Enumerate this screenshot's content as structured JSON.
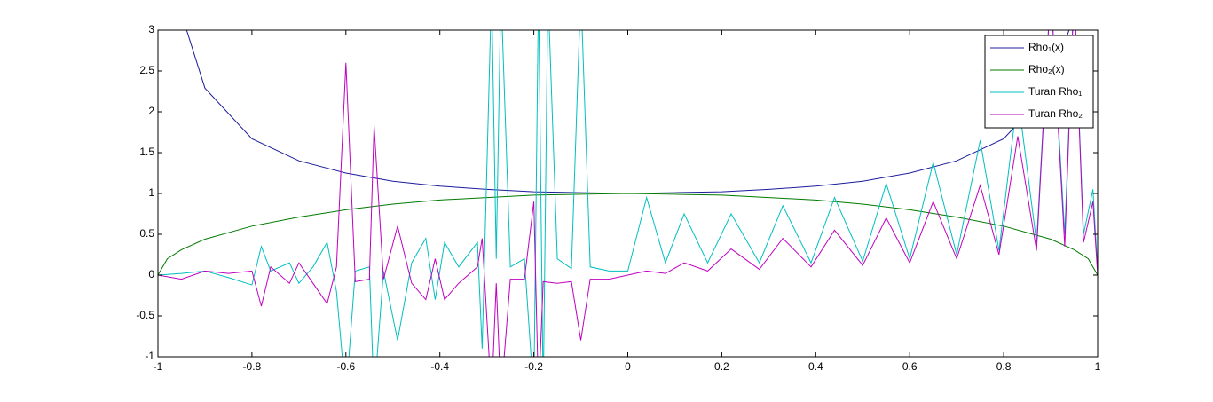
{
  "chart_data": {
    "type": "line",
    "xlim": [
      -1,
      1
    ],
    "xticks": [
      -1,
      -0.8,
      -0.6,
      -0.4,
      -0.2,
      0,
      0.2,
      0.4,
      0.6,
      0.8,
      1
    ],
    "ylim": [
      -1,
      3
    ],
    "yticks": [
      -1,
      -0.5,
      0,
      0.5,
      1,
      1.5,
      2,
      2.5,
      3
    ],
    "grid": false,
    "legend": "top-right",
    "series": [
      {
        "name": "Rho₁(x)",
        "color": "#1c1c9c",
        "x": [
          -0.98,
          -0.95,
          -0.9,
          -0.8,
          -0.7,
          -0.6,
          -0.5,
          -0.4,
          -0.3,
          -0.2,
          -0.1,
          0,
          0.1,
          0.2,
          0.3,
          0.4,
          0.5,
          0.6,
          0.7,
          0.8,
          0.9,
          0.95,
          0.98
        ],
        "values": [
          5.03,
          3.2,
          2.29,
          1.67,
          1.4,
          1.25,
          1.15,
          1.09,
          1.05,
          1.02,
          1.01,
          1,
          1.01,
          1.02,
          1.05,
          1.09,
          1.15,
          1.25,
          1.4,
          1.67,
          2.29,
          3.2,
          5.03
        ]
      },
      {
        "name": "Rho₂(x)",
        "color": "#007a00",
        "x": [
          -1,
          -0.98,
          -0.95,
          -0.9,
          -0.8,
          -0.7,
          -0.6,
          -0.5,
          -0.4,
          -0.3,
          -0.2,
          -0.1,
          0,
          0.1,
          0.2,
          0.3,
          0.4,
          0.5,
          0.6,
          0.7,
          0.8,
          0.9,
          0.95,
          0.98,
          1
        ],
        "values": [
          0,
          0.2,
          0.31,
          0.44,
          0.6,
          0.71,
          0.8,
          0.87,
          0.92,
          0.95,
          0.98,
          0.99,
          1,
          0.99,
          0.98,
          0.95,
          0.92,
          0.87,
          0.8,
          0.71,
          0.6,
          0.44,
          0.31,
          0.2,
          0
        ]
      },
      {
        "name": "Turan Rho₁",
        "color": "#00bfbf",
        "x": [
          -1,
          -0.95,
          -0.9,
          -0.85,
          -0.8,
          -0.78,
          -0.76,
          -0.72,
          -0.7,
          -0.67,
          -0.64,
          -0.62,
          -0.6,
          -0.58,
          -0.55,
          -0.54,
          -0.52,
          -0.49,
          -0.46,
          -0.43,
          -0.41,
          -0.39,
          -0.36,
          -0.32,
          -0.31,
          -0.29,
          -0.28,
          -0.27,
          -0.25,
          -0.22,
          -0.2,
          -0.19,
          -0.18,
          -0.17,
          -0.15,
          -0.12,
          -0.1,
          -0.08,
          -0.04,
          0,
          0.04,
          0.08,
          0.12,
          0.17,
          0.22,
          0.28,
          0.33,
          0.39,
          0.44,
          0.5,
          0.55,
          0.6,
          0.65,
          0.7,
          0.75,
          0.79,
          0.83,
          0.87,
          0.9,
          0.93,
          0.95,
          0.97,
          0.99,
          1
        ],
        "values": [
          0,
          0.02,
          0.05,
          -0.03,
          -0.12,
          0.35,
          0.05,
          0.15,
          -0.1,
          0.1,
          0.4,
          -0.2,
          -1.5,
          0.05,
          0.1,
          -1.5,
          0.05,
          -0.8,
          0.15,
          0.45,
          -0.3,
          0.4,
          0.1,
          0.4,
          -0.9,
          3.5,
          0.2,
          3.5,
          0.1,
          0.2,
          -1.5,
          3.5,
          -1.5,
          3.5,
          0.2,
          0.08,
          3.5,
          0.1,
          0.05,
          0.05,
          0.95,
          0.15,
          0.75,
          0.15,
          0.75,
          0.15,
          0.85,
          0.15,
          0.95,
          0.17,
          1.12,
          0.2,
          1.38,
          0.25,
          1.65,
          0.3,
          2.2,
          0.4,
          3.5,
          0.5,
          3.5,
          0.5,
          1.05,
          0.05
        ]
      },
      {
        "name": "Turan Rho₂",
        "color": "#bf00bf",
        "x": [
          -1,
          -0.95,
          -0.9,
          -0.85,
          -0.8,
          -0.78,
          -0.76,
          -0.72,
          -0.7,
          -0.67,
          -0.64,
          -0.62,
          -0.6,
          -0.58,
          -0.55,
          -0.54,
          -0.52,
          -0.49,
          -0.46,
          -0.43,
          -0.41,
          -0.39,
          -0.36,
          -0.32,
          -0.31,
          -0.29,
          -0.28,
          -0.27,
          -0.25,
          -0.22,
          -0.2,
          -0.19,
          -0.18,
          -0.15,
          -0.12,
          -0.1,
          -0.08,
          -0.04,
          0,
          0.04,
          0.08,
          0.12,
          0.17,
          0.22,
          0.28,
          0.33,
          0.39,
          0.44,
          0.5,
          0.55,
          0.6,
          0.65,
          0.7,
          0.75,
          0.79,
          0.83,
          0.87,
          0.9,
          0.93,
          0.95,
          0.97,
          0.99,
          1
        ],
        "values": [
          0,
          -0.05,
          0.05,
          0.02,
          0.05,
          -0.38,
          0.1,
          -0.1,
          0.15,
          -0.1,
          -0.35,
          0.1,
          2.6,
          -0.08,
          -0.05,
          1.83,
          -0.05,
          0.6,
          -0.1,
          -0.3,
          0.2,
          -0.3,
          -0.1,
          0.1,
          0.45,
          -1.5,
          -0.1,
          -1.5,
          -0.05,
          -0.05,
          0.9,
          -1.5,
          -0.08,
          -0.1,
          -0.08,
          -0.8,
          -0.05,
          -0.05,
          0,
          0.05,
          0.02,
          0.15,
          0.05,
          0.32,
          0.07,
          0.45,
          0.1,
          0.55,
          0.12,
          0.7,
          0.15,
          0.9,
          0.2,
          1.1,
          0.25,
          1.7,
          0.3,
          3.5,
          0.35,
          3.5,
          0.4,
          0.9,
          0
        ]
      }
    ]
  }
}
